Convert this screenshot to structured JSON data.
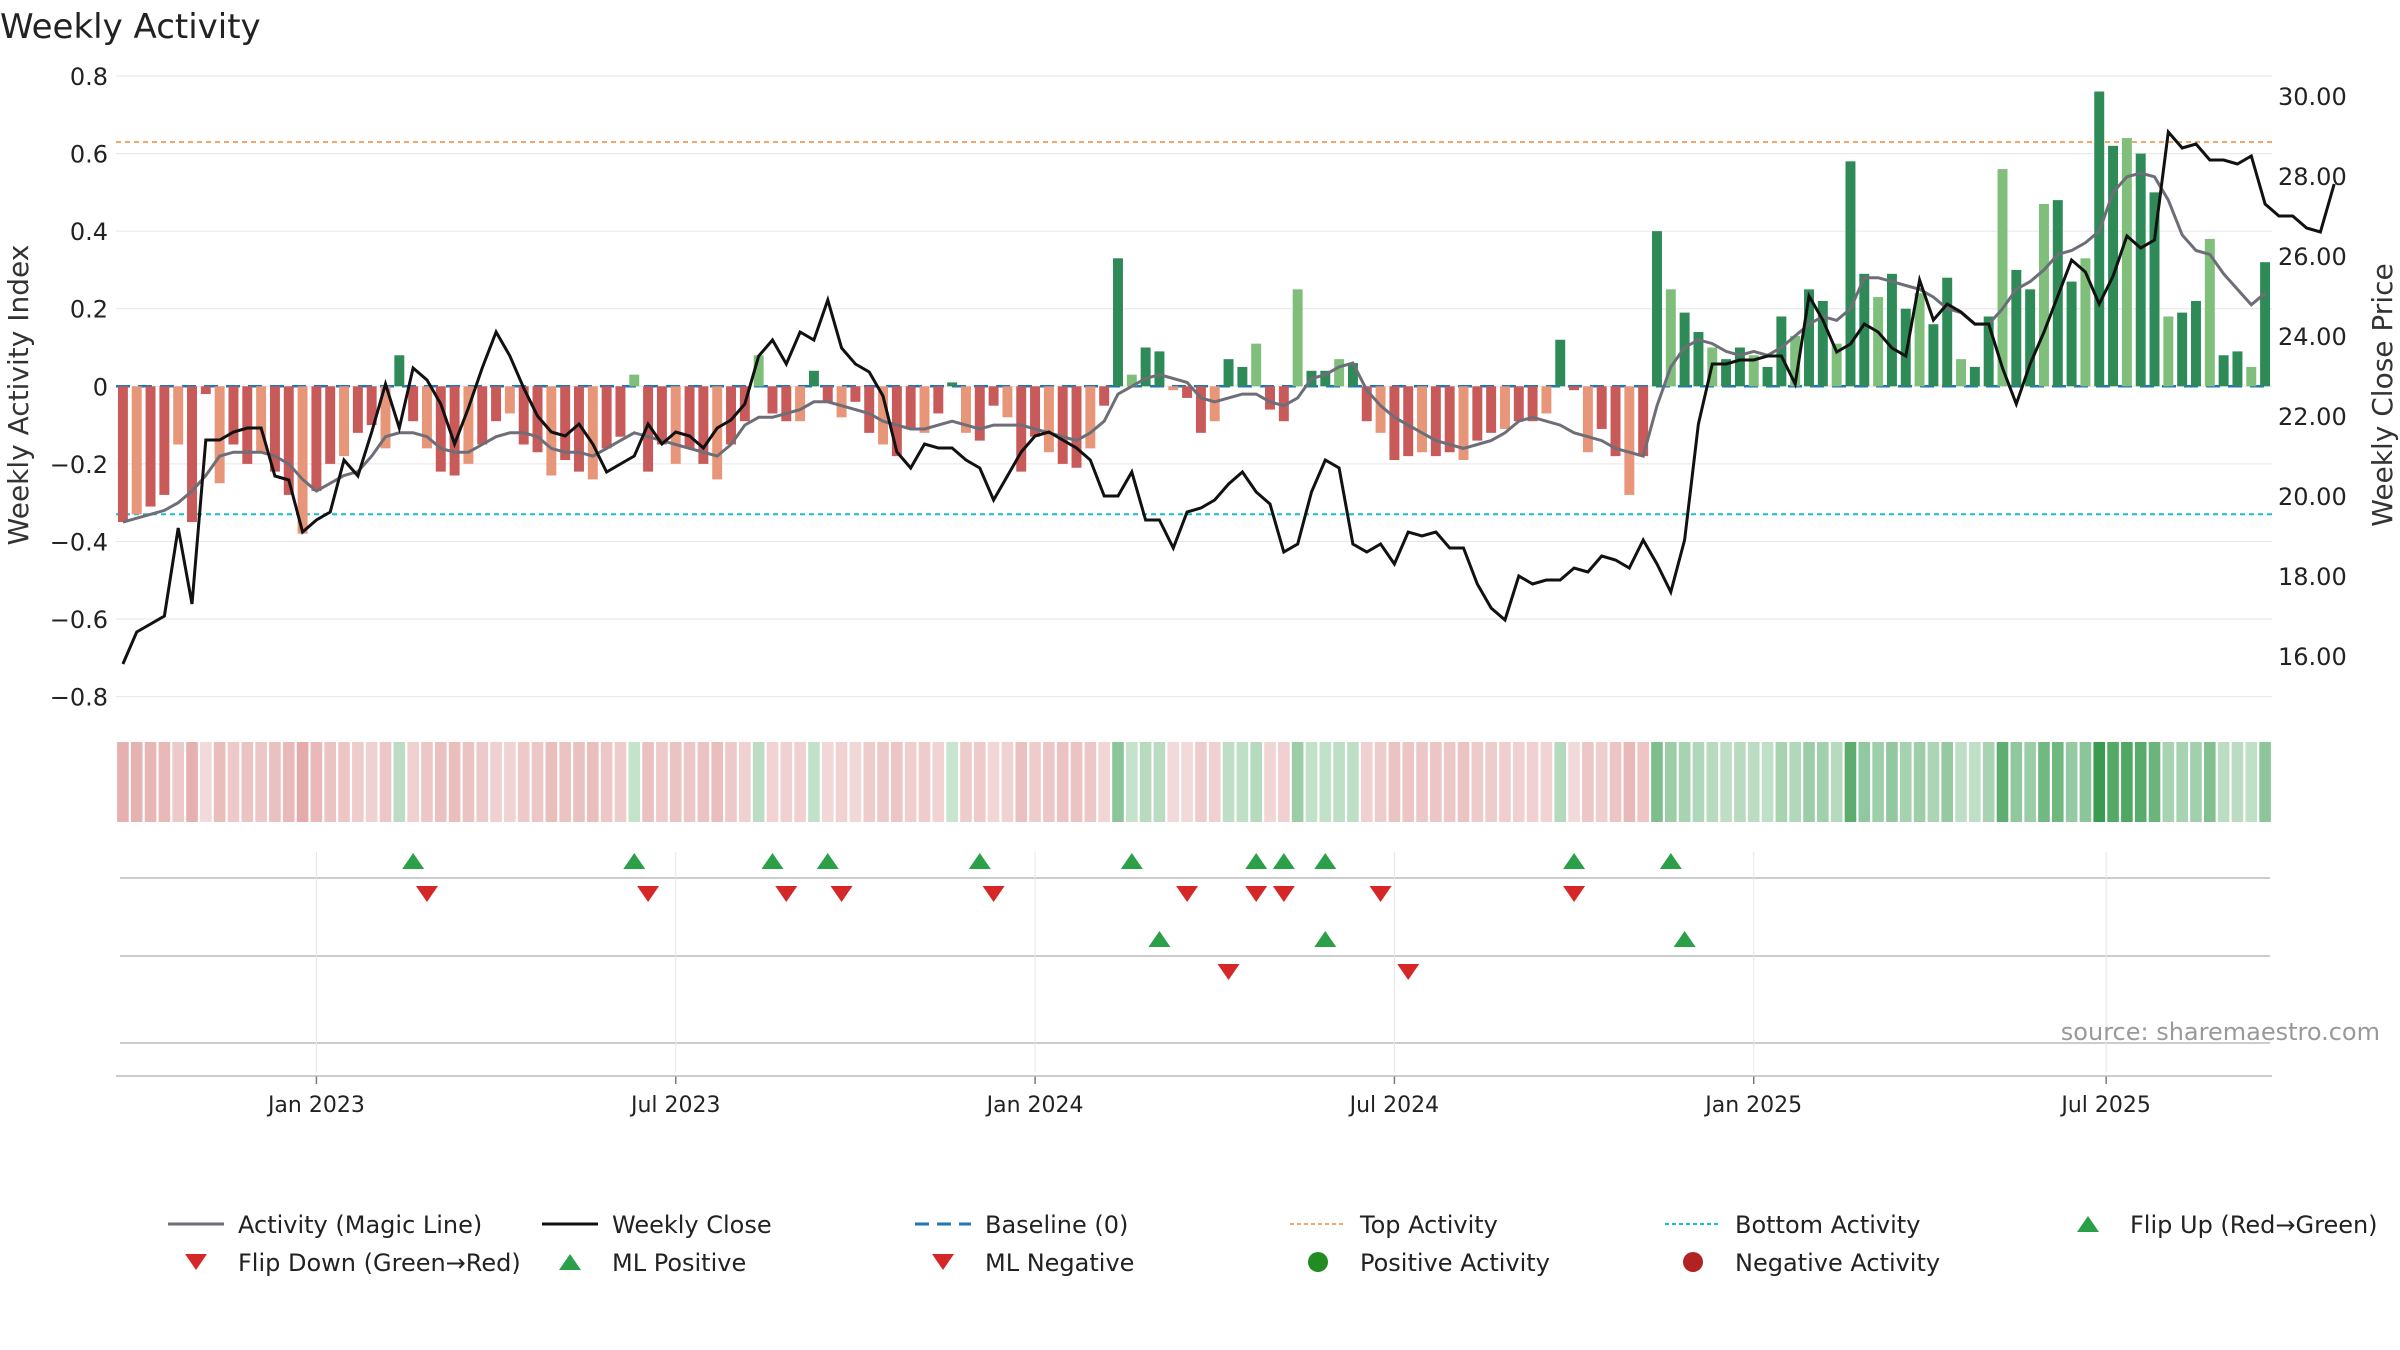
{
  "chart_data": {
    "type": "bar+line",
    "title": "Weekly Activity",
    "ylabel_left": "Weekly Activity Index",
    "ylabel_right": "Weekly Close Price",
    "source": "source: sharemaestro.com",
    "y_left": {
      "min": -0.85,
      "max": 0.8,
      "ticks": [
        {
          "v": 0.8,
          "label": "0.8"
        },
        {
          "v": 0.6,
          "label": "0.6"
        },
        {
          "v": 0.4,
          "label": "0.4"
        },
        {
          "v": 0.2,
          "label": "0.2"
        },
        {
          "v": 0,
          "label": "0"
        },
        {
          "v": -0.2,
          "label": "−0.2"
        },
        {
          "v": -0.4,
          "label": "−0.4"
        },
        {
          "v": -0.6,
          "label": "−0.6"
        },
        {
          "v": -0.8,
          "label": "−0.8"
        }
      ]
    },
    "y_right": {
      "min": 14.5,
      "max": 30.5,
      "ticks": [
        {
          "v": 30,
          "label": "30.00"
        },
        {
          "v": 28,
          "label": "28.00"
        },
        {
          "v": 26,
          "label": "26.00"
        },
        {
          "v": 24,
          "label": "24.00"
        },
        {
          "v": 22,
          "label": "22.00"
        },
        {
          "v": 20,
          "label": "20.00"
        },
        {
          "v": 18,
          "label": "18.00"
        },
        {
          "v": 16,
          "label": "16.00"
        }
      ]
    },
    "x_ticks": [
      {
        "week": 14.5,
        "label": "Jan 2023"
      },
      {
        "week": 40.5,
        "label": "Jul 2023"
      },
      {
        "week": 66.5,
        "label": "Jan 2024"
      },
      {
        "week": 92.5,
        "label": "Jul 2024"
      },
      {
        "week": 118.5,
        "label": "Jan 2025"
      },
      {
        "week": 144,
        "label": "Jul 2025"
      }
    ],
    "reference_lines": {
      "baseline": 0,
      "top_activity": 0.63,
      "bottom_activity": -0.33
    },
    "activity": [
      -0.35,
      -0.33,
      -0.31,
      -0.28,
      -0.15,
      -0.35,
      -0.02,
      -0.25,
      -0.15,
      -0.2,
      -0.17,
      -0.22,
      -0.28,
      -0.38,
      -0.27,
      -0.2,
      -0.18,
      -0.12,
      -0.1,
      -0.16,
      0.08,
      -0.09,
      -0.16,
      -0.22,
      -0.23,
      -0.2,
      -0.15,
      -0.09,
      -0.07,
      -0.15,
      -0.17,
      -0.23,
      -0.19,
      -0.22,
      -0.24,
      -0.16,
      -0.13,
      0.03,
      -0.22,
      -0.15,
      -0.2,
      -0.16,
      -0.2,
      -0.24,
      -0.15,
      -0.09,
      0.08,
      -0.07,
      -0.09,
      -0.09,
      0.04,
      -0.04,
      -0.08,
      -0.04,
      -0.12,
      -0.15,
      -0.18,
      -0.11,
      -0.12,
      -0.07,
      0.01,
      -0.12,
      -0.14,
      -0.05,
      -0.08,
      -0.22,
      -0.13,
      -0.17,
      -0.2,
      -0.21,
      -0.16,
      -0.05,
      0.33,
      0.03,
      0.1,
      0.09,
      -0.01,
      -0.03,
      -0.12,
      -0.09,
      0.07,
      0.05,
      0.11,
      -0.06,
      -0.09,
      0.25,
      0.04,
      0.04,
      0.07,
      0.06,
      -0.09,
      -0.12,
      -0.19,
      -0.18,
      -0.17,
      -0.18,
      -0.17,
      -0.19,
      -0.14,
      -0.12,
      -0.11,
      -0.09,
      -0.09,
      -0.07,
      0.12,
      -0.01,
      -0.17,
      -0.11,
      -0.18,
      -0.28,
      -0.18,
      0.4,
      0.25,
      0.19,
      0.14,
      0.1,
      0.07,
      0.1,
      0.08,
      0.05,
      0.18,
      0.13,
      0.25,
      0.22,
      0.11,
      0.58,
      0.29,
      0.23,
      0.29,
      0.2,
      0.24,
      0.16,
      0.28,
      0.07,
      0.05,
      0.18,
      0.56,
      0.3,
      0.25,
      0.47,
      0.48,
      0.27,
      0.33,
      0.76,
      0.62,
      0.64,
      0.6,
      0.5,
      0.18,
      0.19,
      0.22,
      0.38,
      0.08,
      0.09,
      0.05,
      0.32
    ],
    "magic_line": [
      -0.35,
      -0.34,
      -0.33,
      -0.32,
      -0.3,
      -0.27,
      -0.23,
      -0.18,
      -0.17,
      -0.17,
      -0.17,
      -0.18,
      -0.2,
      -0.24,
      -0.27,
      -0.25,
      -0.23,
      -0.22,
      -0.18,
      -0.13,
      -0.12,
      -0.12,
      -0.13,
      -0.16,
      -0.17,
      -0.17,
      -0.15,
      -0.13,
      -0.12,
      -0.12,
      -0.13,
      -0.16,
      -0.17,
      -0.17,
      -0.18,
      -0.16,
      -0.14,
      -0.12,
      -0.13,
      -0.14,
      -0.15,
      -0.16,
      -0.17,
      -0.18,
      -0.15,
      -0.1,
      -0.08,
      -0.08,
      -0.07,
      -0.06,
      -0.04,
      -0.04,
      -0.05,
      -0.06,
      -0.07,
      -0.09,
      -0.1,
      -0.11,
      -0.11,
      -0.1,
      -0.09,
      -0.1,
      -0.11,
      -0.1,
      -0.1,
      -0.1,
      -0.11,
      -0.12,
      -0.13,
      -0.14,
      -0.12,
      -0.09,
      -0.02,
      0,
      0.02,
      0.03,
      0.02,
      0.01,
      -0.03,
      -0.04,
      -0.03,
      -0.02,
      -0.02,
      -0.04,
      -0.05,
      -0.03,
      0.02,
      0.03,
      0.05,
      0.06,
      -0.01,
      -0.05,
      -0.08,
      -0.1,
      -0.12,
      -0.14,
      -0.15,
      -0.16,
      -0.15,
      -0.14,
      -0.12,
      -0.09,
      -0.08,
      -0.09,
      -0.1,
      -0.12,
      -0.13,
      -0.14,
      -0.16,
      -0.17,
      -0.18,
      -0.05,
      0.05,
      0.1,
      0.12,
      0.11,
      0.09,
      0.08,
      0.09,
      0.08,
      0.1,
      0.13,
      0.16,
      0.18,
      0.17,
      0.2,
      0.28,
      0.28,
      0.27,
      0.26,
      0.25,
      0.23,
      0.2,
      0.19,
      0.16,
      0.16,
      0.2,
      0.25,
      0.27,
      0.3,
      0.34,
      0.35,
      0.37,
      0.4,
      0.5,
      0.54,
      0.55,
      0.54,
      0.48,
      0.39,
      0.35,
      0.34,
      0.29,
      0.25,
      0.21,
      0.24
    ],
    "weekly_close": [
      15.8,
      16.6,
      16.8,
      17,
      19.2,
      17.3,
      21.4,
      21.4,
      21.6,
      21.7,
      21.7,
      20.5,
      20.4,
      19.1,
      19.4,
      19.6,
      20.9,
      20.5,
      21.6,
      22.8,
      21.7,
      23.2,
      22.9,
      22.3,
      21.3,
      22.2,
      23.2,
      24.1,
      23.5,
      22.7,
      22,
      21.6,
      21.5,
      21.8,
      21.3,
      20.6,
      20.8,
      21,
      21.8,
      21.3,
      21.6,
      21.5,
      21.2,
      21.7,
      21.9,
      22.3,
      23.5,
      23.9,
      23.3,
      24.1,
      23.9,
      24.9,
      23.7,
      23.3,
      23.1,
      22.5,
      21.1,
      20.7,
      21.3,
      21.2,
      21.2,
      20.9,
      20.7,
      19.9,
      20.5,
      21.1,
      21.5,
      21.6,
      21.4,
      21.2,
      20.9,
      20,
      20,
      20.6,
      19.4,
      19.4,
      18.7,
      19.6,
      19.7,
      19.9,
      20.3,
      20.6,
      20.1,
      19.8,
      18.6,
      18.8,
      20.1,
      20.9,
      20.7,
      18.8,
      18.6,
      18.8,
      18.3,
      19.1,
      19,
      19.1,
      18.7,
      18.7,
      17.8,
      17.2,
      16.9,
      18,
      17.8,
      17.9,
      17.9,
      18.2,
      18.1,
      18.5,
      18.4,
      18.2,
      18.9,
      18.3,
      17.6,
      18.9,
      21.8,
      23.3,
      23.3,
      23.4,
      23.4,
      23.5,
      23.5,
      22.8,
      25,
      24.4,
      23.6,
      23.8,
      24.3,
      24.1,
      23.7,
      23.5,
      25.4,
      24.4,
      24.8,
      24.6,
      24.3,
      24.3,
      23.2,
      22.3,
      23.3,
      24.1,
      25,
      25.9,
      25.6,
      24.8,
      25.5,
      26.5,
      26.2,
      26.4,
      29.1,
      28.7,
      28.8,
      28.4,
      28.4,
      28.3,
      28.5,
      27.3,
      27,
      27,
      26.7,
      26.6,
      27.8
    ],
    "flip_up": [
      21,
      37,
      47,
      51,
      62,
      73,
      82,
      84,
      87,
      105,
      112
    ],
    "flip_down": [
      22,
      38,
      48,
      52,
      63,
      77,
      82,
      84,
      91,
      105
    ],
    "ml_positive": [
      75,
      87,
      113
    ],
    "ml_negative": [
      80,
      93
    ],
    "legend": [
      {
        "label": "Activity (Magic Line)",
        "symbol": "gray-line"
      },
      {
        "label": "Weekly Close",
        "symbol": "black-line"
      },
      {
        "label": "Baseline (0)",
        "symbol": "blue-dash"
      },
      {
        "label": "Top Activity",
        "symbol": "orange-dots"
      },
      {
        "label": "Bottom Activity",
        "symbol": "cyan-dots"
      },
      {
        "label": "Flip Up (Red→Green)",
        "symbol": "green-up-triangle"
      },
      {
        "label": "Flip Down (Green→Red)",
        "symbol": "red-down-triangle"
      },
      {
        "label": "ML Positive",
        "symbol": "green-up-triangle"
      },
      {
        "label": "ML Negative",
        "symbol": "red-down-triangle"
      },
      {
        "label": "Positive Activity",
        "symbol": "green-dot"
      },
      {
        "label": "Negative Activity",
        "symbol": "red-dot"
      }
    ],
    "colors": {
      "pos_dark": "#2e8b57",
      "pos_light": "#7fbf7b",
      "neg_dark": "#c85a5a",
      "neg_light": "#e8967a",
      "magic": "#6e6e78",
      "close": "#111111",
      "baseline": "#1f77b4",
      "top": "#f0a868",
      "bottom": "#17becf",
      "up": "#2ca048",
      "down": "#d62728",
      "pos_dot": "#228b22",
      "neg_dot": "#b22222"
    }
  }
}
